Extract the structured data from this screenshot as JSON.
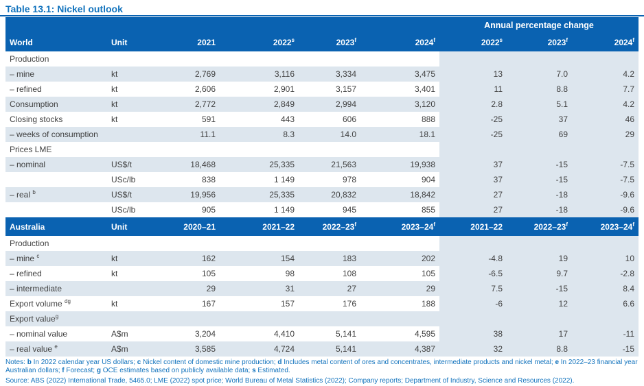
{
  "title": "Table 13.1: Nickel outlook",
  "colors": {
    "header_blue": "#0a62b1",
    "row_shade": "#dde6ee",
    "text_dark": "#414141",
    "text_blue": "#1273bd"
  },
  "world_table": {
    "span_header": "Annual percentage change",
    "columns": [
      {
        "text": "World"
      },
      {
        "text": "Unit"
      },
      {
        "text": "2021"
      },
      {
        "text": "2022",
        "sup": "s"
      },
      {
        "text": "2023",
        "sup": "f"
      },
      {
        "text": "2024",
        "sup": "f"
      },
      {
        "text": "2022",
        "sup": "s"
      },
      {
        "text": "2023",
        "sup": "f"
      },
      {
        "text": "2024",
        "sup": "f"
      }
    ],
    "rows": [
      {
        "label": "Production",
        "section": true
      },
      {
        "label": "– mine",
        "unit": "kt",
        "values": [
          "2,769",
          "3,116",
          "3,334",
          "3,475",
          "13",
          "7.0",
          "4.2"
        ]
      },
      {
        "label": "– refined",
        "unit": "kt",
        "values": [
          "2,606",
          "2,901",
          "3,157",
          "3,401",
          "11",
          "8.8",
          "7.7"
        ]
      },
      {
        "label": "Consumption",
        "unit": "kt",
        "values": [
          "2,772",
          "2,849",
          "2,994",
          "3,120",
          "2.8",
          "5.1",
          "4.2"
        ]
      },
      {
        "label": "Closing stocks",
        "unit": "kt",
        "values": [
          "591",
          "443",
          "606",
          "888",
          "-25",
          "37",
          "46"
        ]
      },
      {
        "label": "– weeks of consumption",
        "unit": "",
        "values": [
          "11.1",
          "8.3",
          "14.0",
          "18.1",
          "-25",
          "69",
          "29"
        ]
      },
      {
        "label": "Prices LME",
        "section": true
      },
      {
        "label": "– nominal",
        "unit": "US$/t",
        "values": [
          "18,468",
          "25,335",
          "21,563",
          "19,938",
          "37",
          "-15",
          "-7.5"
        ]
      },
      {
        "label": "",
        "unit": "USc/lb",
        "values": [
          "838",
          "1 149",
          "978",
          "904",
          "37",
          "-15",
          "-7.5"
        ]
      },
      {
        "label": "– real ",
        "sup": "b",
        "unit": "US$/t",
        "values": [
          "19,956",
          "25,335",
          "20,832",
          "18,842",
          "27",
          "-18",
          "-9.6"
        ]
      },
      {
        "label": "",
        "unit": "USc/lb",
        "values": [
          "905",
          "1 149",
          "945",
          "855",
          "27",
          "-18",
          "-9.6"
        ]
      }
    ]
  },
  "australia_table": {
    "columns": [
      {
        "text": "Australia"
      },
      {
        "text": "Unit"
      },
      {
        "text": "2020–21"
      },
      {
        "text": "2021–22"
      },
      {
        "text": "2022–23",
        "sup": "f"
      },
      {
        "text": "2023–24",
        "sup": "f"
      },
      {
        "text": "2021–22"
      },
      {
        "text": "2022–23",
        "sup": "f"
      },
      {
        "text": "2023–24",
        "sup": "f"
      }
    ],
    "rows": [
      {
        "label": "Production",
        "section": true
      },
      {
        "label": "– mine ",
        "sup": "c",
        "unit": "kt",
        "values": [
          "162",
          "154",
          "183",
          "202",
          "-4.8",
          "19",
          "10"
        ]
      },
      {
        "label": "– refined",
        "unit": "kt",
        "values": [
          "105",
          "98",
          "108",
          "105",
          "-6.5",
          "9.7",
          "-2.8"
        ]
      },
      {
        "label": "– intermediate",
        "unit": "",
        "values": [
          "29",
          "31",
          "27",
          "29",
          "7.5",
          "-15",
          "8.4"
        ]
      },
      {
        "label": "Export volume ",
        "sup": "dg",
        "unit": "kt",
        "values": [
          "167",
          "157",
          "176",
          "188",
          "-6",
          "12",
          "6.6"
        ]
      },
      {
        "label": "Export value",
        "sup": "g",
        "section": true
      },
      {
        "label": "– nominal value",
        "unit": "A$m",
        "values": [
          "3,204",
          "4,410",
          "5,141",
          "4,595",
          "38",
          "17",
          "-11"
        ]
      },
      {
        "label": "– real value ",
        "sup": "e",
        "unit": "A$m",
        "values": [
          "3,585",
          "4,724",
          "5,141",
          "4,387",
          "32",
          "8.8",
          "-15"
        ]
      }
    ]
  },
  "notes": {
    "prefix": "Notes:",
    "items": [
      {
        "key": "b",
        "text": "In 2022 calendar year US dollars"
      },
      {
        "key": "c",
        "text": "Nickel content of domestic mine production"
      },
      {
        "key": "d",
        "text": "Includes metal content of ores and concentrates, intermediate products and nickel metal"
      },
      {
        "key": "e",
        "text": "In 2022–23 financial year Australian dollars"
      },
      {
        "key": "f",
        "text": "Forecast"
      },
      {
        "key": "g",
        "text": "OCE estimates based on publicly available data"
      },
      {
        "key": "s",
        "text": "Estimated"
      }
    ]
  },
  "source": "Source: ABS (2022) International Trade, 5465.0; LME (2022) spot price; World Bureau of Metal Statistics (2022); Company reports; Department of Industry, Science and Resources (2022)."
}
